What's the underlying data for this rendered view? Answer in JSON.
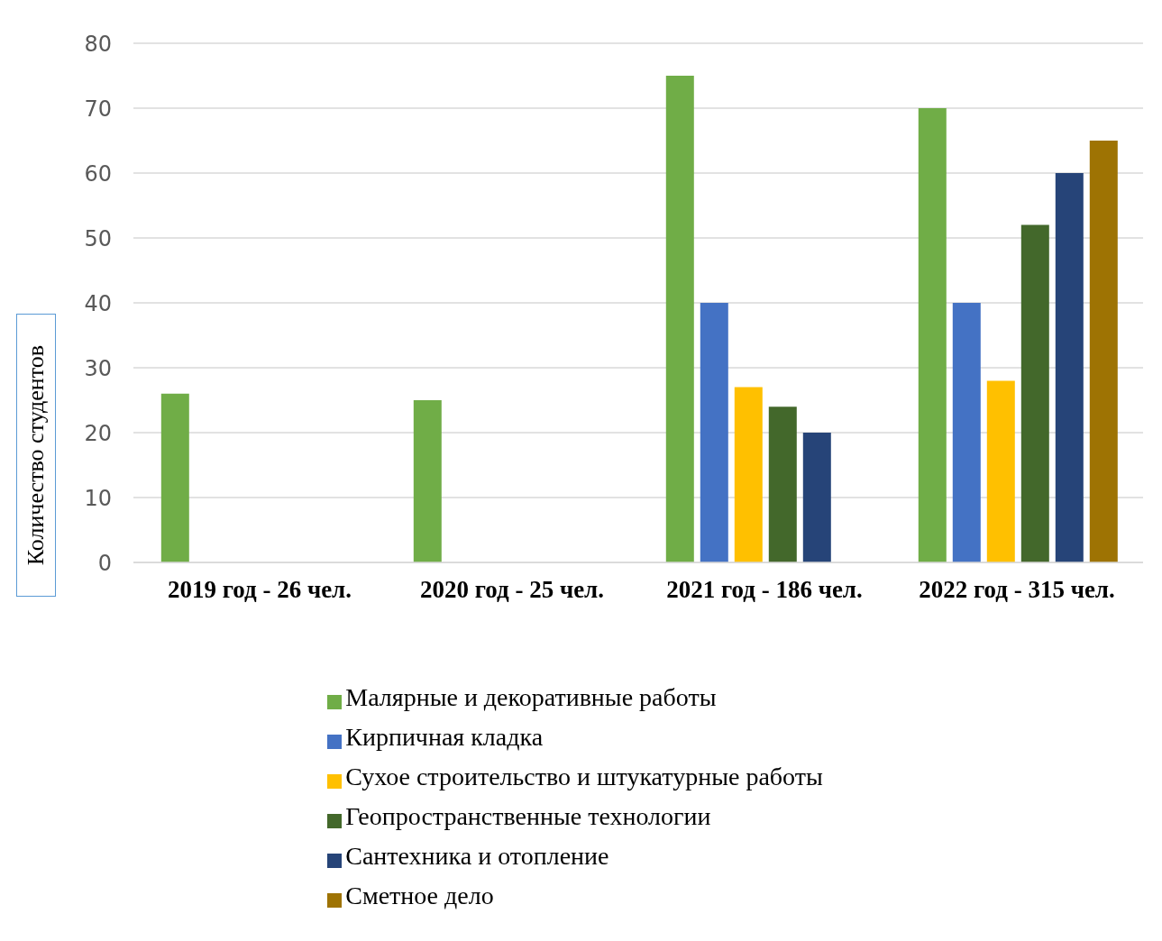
{
  "chart_data": {
    "type": "bar",
    "ylabel": "Количество студентов",
    "categories": [
      "2019 год - 26 чел.",
      "2020 год - 25 чел.",
      "2021 год - 186 чел.",
      "2022 год - 315 чел."
    ],
    "series": [
      {
        "name": "Малярные и декоративные работы",
        "color": "#70ad47",
        "values": [
          26,
          25,
          75,
          70
        ]
      },
      {
        "name": "Кирпичная кладка",
        "color": "#4472c4",
        "values": [
          null,
          null,
          40,
          40
        ]
      },
      {
        "name": "Сухое строительство и штукатурные работы",
        "color": "#ffc000",
        "values": [
          null,
          null,
          27,
          28
        ]
      },
      {
        "name": "Геопространственные технологии",
        "color": "#43682b",
        "values": [
          null,
          null,
          24,
          52
        ]
      },
      {
        "name": "Сантехника и отопление",
        "color": "#264478",
        "values": [
          null,
          null,
          20,
          60
        ]
      },
      {
        "name": "Сметное дело",
        "color": "#9e7303",
        "values": [
          null,
          null,
          null,
          65
        ]
      }
    ],
    "ylim": [
      0,
      80
    ],
    "yticks": [
      0,
      10,
      20,
      30,
      40,
      50,
      60,
      70,
      80
    ],
    "grid": "y",
    "legend": "bottom"
  }
}
